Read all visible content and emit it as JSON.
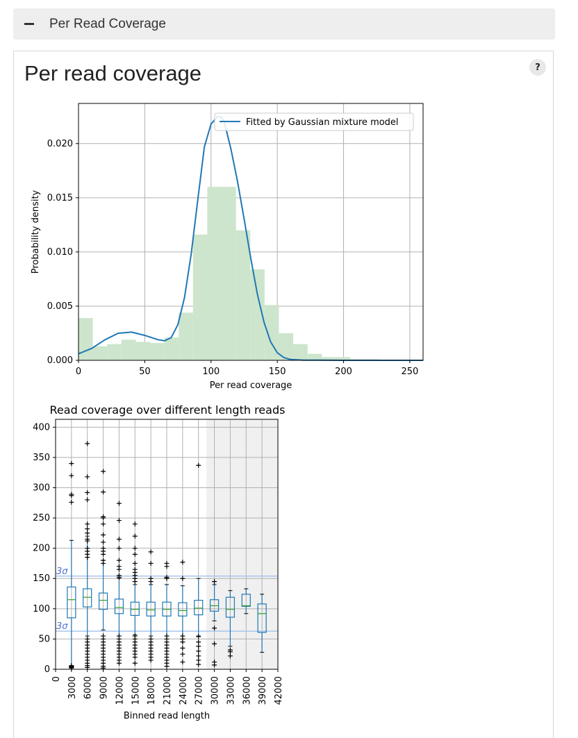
{
  "section": {
    "label": "Per Read Coverage"
  },
  "panel": {
    "title": "Per read coverage",
    "help_label": "?"
  },
  "chart_data": [
    {
      "type": "histogram+line",
      "title": "",
      "xlabel": "Per read coverage",
      "ylabel": "Probability density",
      "xlim": [
        0,
        260
      ],
      "ylim": [
        0,
        0.0237
      ],
      "xticks": [
        "0",
        "50",
        "100",
        "150",
        "200",
        "250"
      ],
      "yticks": [
        "0.000",
        "0.005",
        "0.010",
        "0.015",
        "0.020"
      ],
      "grid": true,
      "legend_position": "top-right",
      "hist_color": "#cce5cc",
      "line_color": "#1f77b4",
      "histogram": {
        "bin_width": 10.8,
        "bin_edges_start": 0,
        "densities": [
          0.0039,
          0.0013,
          0.0015,
          0.0019,
          0.0017,
          0.0016,
          0.0021,
          0.0044,
          0.0116,
          0.016,
          0.016,
          0.012,
          0.0084,
          0.0051,
          0.0025,
          0.0015,
          0.0006,
          0.0003,
          0.0003,
          0.0001,
          0.0001,
          5e-05,
          3e-05,
          2e-05
        ]
      },
      "series": [
        {
          "name": "Fitted by Gaussian mixture model",
          "x": [
            0,
            10,
            20,
            30,
            40,
            50,
            60,
            65,
            70,
            75,
            80,
            85,
            90,
            95,
            100,
            105,
            108,
            110,
            115,
            120,
            125,
            130,
            135,
            140,
            145,
            150,
            155,
            160,
            170,
            180,
            200,
            230,
            260
          ],
          "y": [
            0.0006,
            0.0011,
            0.0019,
            0.0025,
            0.0026,
            0.0023,
            0.0019,
            0.0018,
            0.0021,
            0.0033,
            0.0058,
            0.0098,
            0.0148,
            0.0197,
            0.0218,
            0.0225,
            0.0224,
            0.022,
            0.0195,
            0.0165,
            0.013,
            0.0094,
            0.0061,
            0.0035,
            0.0017,
            0.0007,
            0.00025,
            8e-05,
            2e-05,
            1e-05,
            0.0,
            0.0,
            0.0
          ]
        }
      ]
    },
    {
      "type": "box",
      "title": "Read coverage over different length reads",
      "xlabel": "Binned read length",
      "ylabel": "",
      "xlim": [
        0,
        42000
      ],
      "ylim": [
        0,
        413
      ],
      "xticks": [
        "0",
        "3000",
        "6000",
        "9000",
        "12000",
        "15000",
        "18000",
        "21000",
        "24000",
        "27000",
        "30000",
        "33000",
        "36000",
        "39000",
        "42000"
      ],
      "yticks": [
        "0",
        "50",
        "100",
        "150",
        "200",
        "250",
        "300",
        "350",
        "400"
      ],
      "grid": true,
      "box_color": "#1f77b4",
      "median_color": "#2ca02c",
      "shaded_region": {
        "x_start": 28500,
        "x_end": 42000,
        "color": "#f0f0f0"
      },
      "reference_lines": [
        {
          "label": "3σ",
          "y": 154
        },
        {
          "label": "3σ",
          "y": 63
        }
      ],
      "boxes": [
        {
          "x": 3000,
          "q1": 85,
          "median": 115,
          "q3": 136,
          "whisker_low": 5,
          "whisker_high": 213,
          "outliers": [
            340,
            320,
            289,
            287,
            276,
            5,
            3,
            4,
            2,
            6
          ]
        },
        {
          "x": 6000,
          "q1": 103,
          "median": 119,
          "q3": 133,
          "whisker_low": 55,
          "whisker_high": 220,
          "outliers": [
            373,
            318,
            292,
            280,
            240,
            232,
            225,
            215,
            212,
            200,
            195,
            190,
            185,
            50,
            45,
            40,
            35,
            30,
            25,
            20,
            15,
            10,
            6,
            3
          ]
        },
        {
          "x": 9000,
          "q1": 99,
          "median": 114,
          "q3": 126,
          "whisker_low": 65,
          "whisker_high": 180,
          "outliers": [
            327,
            293,
            252,
            250,
            240,
            222,
            210,
            200,
            195,
            190,
            180,
            175,
            55,
            50,
            45,
            40,
            35,
            30,
            25,
            20,
            15,
            10,
            5,
            2
          ]
        },
        {
          "x": 12000,
          "q1": 92,
          "median": 102,
          "q3": 116,
          "whisker_low": 55,
          "whisker_high": 150,
          "outliers": [
            274,
            246,
            215,
            200,
            180,
            170,
            165,
            155,
            152,
            55,
            50,
            45,
            40,
            35,
            30,
            25,
            20,
            15,
            10
          ]
        },
        {
          "x": 15000,
          "q1": 89,
          "median": 99,
          "q3": 111,
          "whisker_low": 57,
          "whisker_high": 140,
          "outliers": [
            240,
            220,
            200,
            190,
            175,
            165,
            160,
            155,
            150,
            145,
            55,
            50,
            45,
            40,
            35,
            30,
            25,
            20,
            10
          ]
        },
        {
          "x": 18000,
          "q1": 88,
          "median": 98,
          "q3": 111,
          "whisker_low": 55,
          "whisker_high": 140,
          "outliers": [
            194,
            175,
            150,
            145,
            50,
            45,
            40,
            35,
            30,
            25,
            20,
            15
          ]
        },
        {
          "x": 21000,
          "q1": 88,
          "median": 99,
          "q3": 111,
          "whisker_low": 55,
          "whisker_high": 140,
          "outliers": [
            175,
            170,
            152,
            150,
            55,
            50,
            45,
            40,
            35,
            30,
            25,
            20,
            15,
            10,
            5
          ]
        },
        {
          "x": 24000,
          "q1": 88,
          "median": 97,
          "q3": 110,
          "whisker_low": 55,
          "whisker_high": 138,
          "outliers": [
            177,
            150,
            55,
            50,
            45,
            35,
            25,
            12
          ]
        },
        {
          "x": 27000,
          "q1": 90,
          "median": 101,
          "q3": 114,
          "whisker_low": 55,
          "whisker_high": 150,
          "outliers": [
            337,
            54,
            45,
            38,
            30,
            22,
            15,
            8
          ]
        },
        {
          "x": 30000,
          "q1": 96,
          "median": 105,
          "q3": 115,
          "whisker_low": 80,
          "whisker_high": 140,
          "outliers": [
            145,
            68,
            42,
            12,
            7
          ]
        },
        {
          "x": 33000,
          "q1": 86,
          "median": 99,
          "q3": 119,
          "whisker_low": 38,
          "whisker_high": 130,
          "outliers": [
            32,
            29,
            22
          ]
        },
        {
          "x": 36000,
          "q1": 104,
          "median": 105,
          "q3": 124,
          "whisker_low": 92,
          "whisker_high": 133,
          "outliers": []
        },
        {
          "x": 39000,
          "q1": 61,
          "median": 92,
          "q3": 108,
          "whisker_low": 28,
          "whisker_high": 124,
          "outliers": []
        }
      ]
    }
  ]
}
